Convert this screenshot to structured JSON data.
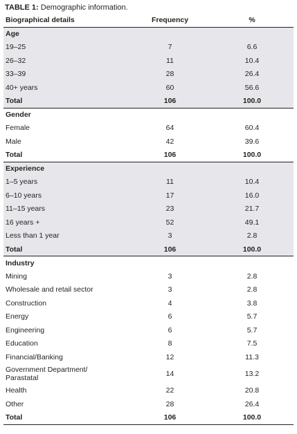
{
  "caption": {
    "label": "TABLE 1:",
    "text": " Demographic information."
  },
  "table": {
    "headers": [
      "Biographical details",
      "Frequency",
      "%"
    ],
    "groups": [
      {
        "title": "Age",
        "shaded": true,
        "rows": [
          [
            "19–25",
            "7",
            "6.6"
          ],
          [
            "26–32",
            "11",
            "10.4"
          ],
          [
            "33–39",
            "28",
            "26.4"
          ],
          [
            "40+ years",
            "60",
            "56.6"
          ]
        ],
        "total": [
          "Total",
          "106",
          "100.0"
        ]
      },
      {
        "title": "Gender",
        "shaded": false,
        "rows": [
          [
            "Female",
            "64",
            "60.4"
          ],
          [
            "Male",
            "42",
            "39.6"
          ]
        ],
        "total": [
          "Total",
          "106",
          "100.0"
        ]
      },
      {
        "title": "Experience",
        "shaded": true,
        "rows": [
          [
            "1–5 years",
            "11",
            "10.4"
          ],
          [
            "6–10 years",
            "17",
            "16.0"
          ],
          [
            "11–15 years",
            "23",
            "21.7"
          ],
          [
            "16 years +",
            "52",
            "49.1"
          ],
          [
            "Less than 1 year",
            "3",
            "2.8"
          ]
        ],
        "total": [
          "Total",
          "106",
          "100.0"
        ]
      },
      {
        "title": "Industry",
        "shaded": false,
        "rows": [
          [
            "Mining",
            "3",
            "2.8"
          ],
          [
            "Wholesale and retail sector",
            "3",
            "2.8"
          ],
          [
            "Construction",
            "4",
            "3.8"
          ],
          [
            "Energy",
            "6",
            "5.7"
          ],
          [
            "Engineering",
            "6",
            "5.7"
          ],
          [
            "Education",
            "8",
            "7.5"
          ],
          [
            "Financial/Banking",
            "12",
            "11.3"
          ],
          [
            "Government Department/\nParastatal",
            "14",
            "13.2"
          ],
          [
            "Health",
            "22",
            "20.8"
          ],
          [
            "Other",
            "28",
            "26.4"
          ]
        ],
        "total": [
          "Total",
          "106",
          "100.0"
        ]
      }
    ]
  },
  "colors": {
    "shade": "#e7e6ea",
    "text": "#231f20"
  }
}
